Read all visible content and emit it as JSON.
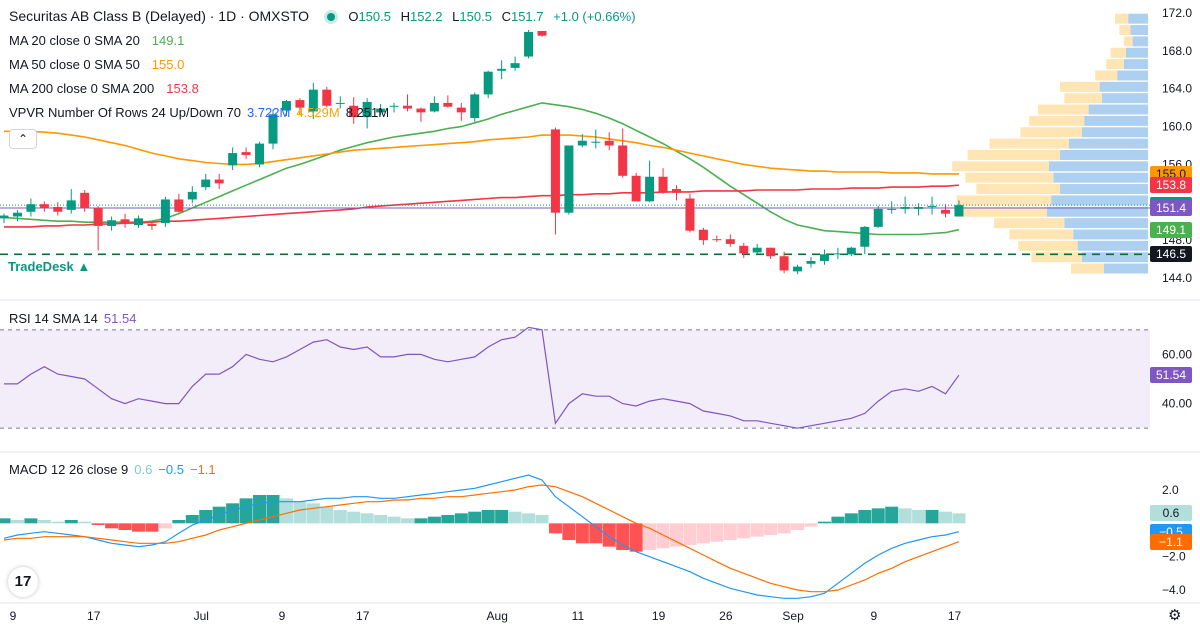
{
  "header": {
    "symbol_title": "Securitas AB Class B (Delayed) · 1D · OMXSTO",
    "ohlc": [
      {
        "key": "O",
        "value": "150.5"
      },
      {
        "key": "H",
        "value": "152.2"
      },
      {
        "key": "L",
        "value": "150.5"
      },
      {
        "key": "C",
        "value": "151.7"
      }
    ],
    "change": "+1.0 (+0.66%)"
  },
  "indicators": {
    "ma20": {
      "label": "MA 20 close 0 SMA 20",
      "value": "149.1",
      "color": "#4caf50"
    },
    "ma50": {
      "label": "MA 50 close 0 SMA 50",
      "value": "155.0",
      "color": "#ff9800"
    },
    "ma200": {
      "label": "MA 200 close 0 SMA 200",
      "value": "153.8",
      "color": "#f23645"
    },
    "vpvr": {
      "label": "VPVR Number Of Rows 24 Up/Down 70",
      "up": "3.722M",
      "down": "4.529M",
      "total": "8.251M"
    },
    "rsi": {
      "label": "RSI 14 SMA 14",
      "value": "51.54",
      "color": "#7e57c2"
    },
    "macd": {
      "label": "MACD 12 26 close 9",
      "hist": "0.6",
      "macd": "−0.5",
      "signal": "−1.1"
    }
  },
  "branding": {
    "tradedesk": "TradeDesk ▲",
    "logo": "17",
    "gear_icon": "gear-icon",
    "collapse_icon": "chevron-up-icon"
  },
  "price_badges": [
    {
      "text": "155.0",
      "bg": "#ff9800",
      "fg": "#131722",
      "price": 155.0
    },
    {
      "text": "153.8",
      "bg": "#f23645",
      "fg": "#ffffff",
      "price": 153.8
    },
    {
      "text": "151.7",
      "bg": "#089981",
      "fg": "#ffffff",
      "price": 151.7
    },
    {
      "text": "151.4",
      "bg": "#7e57c2",
      "fg": "#ffffff",
      "price": 151.4
    },
    {
      "text": "149.1",
      "bg": "#4caf50",
      "fg": "#ffffff",
      "price": 149.1
    },
    {
      "text": "146.5",
      "bg": "#131722",
      "fg": "#ffffff",
      "price": 146.5
    }
  ],
  "rsi_badge": {
    "text": "51.54",
    "bg": "#7e57c2",
    "fg": "#ffffff",
    "value": 51.54
  },
  "macd_badges": [
    {
      "text": "0.6",
      "bg": "#b2dfdb",
      "fg": "#131722",
      "value": 0.6
    },
    {
      "text": "−0.5",
      "bg": "#2196f3",
      "fg": "#ffffff",
      "value": -0.5
    },
    {
      "text": "−1.1",
      "bg": "#ff6d00",
      "fg": "#ffffff",
      "value": -1.1
    }
  ],
  "chart_data": {
    "type": "candlestick",
    "title": "Securitas AB Class B (Delayed) · 1D · OMXSTO",
    "price_axis": {
      "ticks": [
        144.0,
        148.0,
        152.0,
        156.0,
        160.0,
        164.0,
        168.0,
        172.0
      ],
      "labels": [
        "144.0",
        "148.0",
        "152.0",
        "156.0",
        "160.0",
        "164.0",
        "168.0",
        "172.0"
      ],
      "range": [
        143.2,
        172.6
      ]
    },
    "x_axis_labels": [
      {
        "label": "9",
        "index": 0
      },
      {
        "label": "17",
        "index": 6
      },
      {
        "label": "Jul",
        "index": 14
      },
      {
        "label": "9",
        "index": 20
      },
      {
        "label": "17",
        "index": 26
      },
      {
        "label": "Aug",
        "index": 36
      },
      {
        "label": "11",
        "index": 42
      },
      {
        "label": "19",
        "index": 48
      },
      {
        "label": "26",
        "index": 53
      },
      {
        "label": "Sep",
        "index": 58
      },
      {
        "label": "9",
        "index": 64
      },
      {
        "label": "17",
        "index": 70
      }
    ],
    "candles": [
      [
        150.3,
        150.8,
        149.8,
        150.6
      ],
      [
        150.5,
        151.2,
        150.0,
        150.9
      ],
      [
        151.0,
        152.4,
        150.5,
        151.8
      ],
      [
        151.8,
        152.1,
        151.0,
        151.4
      ],
      [
        151.5,
        152.0,
        150.6,
        151.0
      ],
      [
        151.2,
        153.4,
        150.8,
        152.2
      ],
      [
        153.0,
        153.3,
        151.0,
        151.4
      ],
      [
        151.4,
        151.6,
        146.9,
        149.5
      ],
      [
        149.5,
        150.5,
        149.0,
        150.1
      ],
      [
        150.2,
        150.8,
        149.3,
        149.7
      ],
      [
        149.6,
        150.6,
        149.3,
        150.3
      ],
      [
        149.7,
        150.0,
        149.1,
        149.5
      ],
      [
        149.8,
        152.6,
        149.4,
        152.3
      ],
      [
        152.3,
        152.9,
        150.9,
        151.0
      ],
      [
        152.3,
        153.7,
        151.9,
        153.1
      ],
      [
        153.6,
        155.0,
        153.3,
        154.4
      ],
      [
        154.4,
        155.0,
        153.4,
        154.0
      ],
      [
        155.9,
        157.8,
        155.4,
        157.2
      ],
      [
        157.3,
        157.8,
        156.6,
        157.0
      ],
      [
        156.0,
        158.4,
        155.7,
        158.2
      ],
      [
        158.2,
        161.8,
        157.6,
        161.3
      ],
      [
        161.7,
        162.8,
        161.1,
        162.7
      ],
      [
        162.8,
        163.0,
        161.2,
        162.0
      ],
      [
        161.6,
        164.6,
        160.8,
        163.9
      ],
      [
        163.9,
        164.2,
        162.0,
        162.2
      ],
      [
        162.4,
        163.2,
        161.9,
        162.5
      ],
      [
        162.2,
        163.1,
        160.3,
        161.0
      ],
      [
        161.0,
        163.0,
        159.8,
        162.6
      ],
      [
        161.5,
        162.4,
        161.2,
        161.9
      ],
      [
        162.1,
        162.5,
        161.5,
        162.2
      ],
      [
        162.2,
        163.4,
        161.6,
        161.9
      ],
      [
        161.9,
        162.0,
        160.5,
        161.5
      ],
      [
        161.6,
        163.2,
        161.5,
        162.5
      ],
      [
        162.5,
        163.3,
        162.0,
        162.1
      ],
      [
        162.0,
        162.5,
        160.6,
        161.5
      ],
      [
        160.9,
        163.6,
        160.5,
        163.4
      ],
      [
        163.4,
        165.9,
        163.0,
        165.8
      ],
      [
        165.9,
        167.0,
        165.0,
        166.1
      ],
      [
        166.2,
        167.4,
        165.9,
        166.7
      ],
      [
        167.4,
        170.2,
        167.2,
        170.0
      ],
      [
        170.1,
        170.0,
        169.5,
        169.6
      ],
      [
        159.7,
        159.9,
        148.6,
        150.9
      ],
      [
        150.9,
        158.0,
        150.7,
        158.0
      ],
      [
        158.0,
        159.2,
        157.8,
        158.5
      ],
      [
        158.4,
        159.7,
        157.7,
        158.4
      ],
      [
        158.5,
        159.4,
        157.5,
        158.0
      ],
      [
        158.0,
        159.8,
        154.6,
        154.8
      ],
      [
        154.8,
        155.1,
        152.2,
        152.1
      ],
      [
        152.1,
        156.4,
        152.0,
        154.7
      ],
      [
        154.7,
        155.6,
        152.9,
        153.0
      ],
      [
        153.4,
        153.8,
        152.2,
        153.0
      ],
      [
        152.4,
        152.9,
        148.8,
        149.0
      ],
      [
        149.1,
        149.3,
        147.5,
        148.0
      ],
      [
        148.1,
        148.5,
        147.8,
        148.0
      ],
      [
        148.1,
        148.6,
        147.3,
        147.6
      ],
      [
        147.4,
        147.7,
        146.1,
        146.6
      ],
      [
        146.7,
        147.6,
        146.6,
        147.2
      ],
      [
        147.2,
        147.2,
        146.0,
        146.3
      ],
      [
        146.3,
        146.8,
        144.5,
        144.8
      ],
      [
        144.7,
        145.4,
        144.4,
        145.2
      ],
      [
        145.5,
        146.2,
        145.1,
        145.8
      ],
      [
        145.8,
        147.0,
        145.4,
        146.5
      ],
      [
        146.5,
        147.2,
        146.0,
        146.6
      ],
      [
        146.5,
        147.3,
        146.3,
        147.2
      ],
      [
        147.3,
        149.5,
        146.5,
        149.4
      ],
      [
        149.4,
        151.6,
        149.3,
        151.3
      ],
      [
        151.2,
        152.1,
        150.8,
        151.3
      ],
      [
        151.3,
        152.6,
        150.8,
        151.5
      ],
      [
        151.3,
        151.9,
        150.6,
        151.5
      ],
      [
        151.5,
        152.6,
        150.7,
        151.6
      ],
      [
        151.2,
        151.8,
        150.4,
        150.8
      ],
      [
        150.5,
        152.2,
        150.5,
        151.7
      ]
    ],
    "moving_averages": [
      {
        "name": "MA 20",
        "color": "#4caf50",
        "values": [
          150.4,
          150.3,
          150.2,
          150.1,
          150.0,
          150.0,
          149.9,
          149.9,
          149.9,
          149.9,
          149.9,
          150.0,
          150.3,
          150.8,
          151.4,
          152.0,
          152.6,
          153.2,
          153.8,
          154.4,
          155.0,
          155.6,
          156.0,
          156.5,
          157.0,
          157.5,
          157.9,
          158.3,
          158.6,
          158.9,
          159.1,
          159.3,
          159.5,
          159.8,
          160.0,
          160.4,
          160.8,
          161.3,
          161.7,
          162.1,
          162.5,
          162.3,
          162.1,
          161.8,
          161.4,
          160.9,
          160.3,
          159.6,
          158.9,
          158.2,
          157.4,
          156.6,
          155.7,
          154.7,
          153.7,
          152.8,
          151.9,
          151.0,
          150.2,
          149.6,
          149.3,
          149.0,
          148.9,
          148.8,
          148.7,
          148.6,
          148.6,
          148.6,
          148.6,
          148.7,
          148.8,
          149.1
        ]
      },
      {
        "name": "MA 50",
        "color": "#ff9800",
        "values": [
          159.5,
          159.5,
          159.5,
          159.4,
          159.3,
          159.1,
          158.9,
          158.6,
          158.3,
          158.0,
          157.6,
          157.2,
          156.9,
          156.6,
          156.4,
          156.2,
          156.1,
          156.0,
          156.0,
          156.1,
          156.3,
          156.5,
          156.7,
          156.9,
          157.1,
          157.3,
          157.5,
          157.6,
          157.7,
          157.8,
          157.9,
          158.0,
          158.1,
          158.2,
          158.3,
          158.4,
          158.6,
          158.7,
          158.8,
          158.9,
          159.1,
          159.1,
          159.1,
          159.0,
          158.9,
          158.7,
          158.5,
          158.3,
          158.0,
          157.8,
          157.5,
          157.2,
          156.9,
          156.6,
          156.3,
          156.0,
          155.8,
          155.6,
          155.5,
          155.4,
          155.3,
          155.3,
          155.2,
          155.2,
          155.2,
          155.2,
          155.1,
          155.1,
          155.1,
          155.0,
          155.0,
          155.0
        ]
      },
      {
        "name": "MA 200",
        "color": "#f23645",
        "values": [
          149.4,
          149.4,
          149.4,
          149.5,
          149.5,
          149.6,
          149.6,
          149.7,
          149.7,
          149.8,
          149.8,
          149.9,
          150.0,
          150.0,
          150.1,
          150.2,
          150.3,
          150.4,
          150.5,
          150.6,
          150.7,
          150.8,
          150.9,
          151.0,
          151.1,
          151.2,
          151.3,
          151.5,
          151.6,
          151.7,
          151.8,
          151.9,
          152.0,
          152.1,
          152.2,
          152.3,
          152.4,
          152.5,
          152.5,
          152.6,
          152.7,
          152.7,
          152.8,
          152.8,
          152.9,
          152.9,
          153.0,
          153.0,
          153.0,
          153.1,
          153.1,
          153.1,
          153.2,
          153.2,
          153.2,
          153.2,
          153.3,
          153.3,
          153.3,
          153.3,
          153.4,
          153.4,
          153.4,
          153.5,
          153.5,
          153.5,
          153.6,
          153.6,
          153.6,
          153.7,
          153.7,
          153.8
        ]
      }
    ],
    "reference_lines": [
      {
        "price": 151.7,
        "style": "dotted",
        "color": "#089981"
      },
      {
        "price": 151.4,
        "style": "solid",
        "color": "#7e57c2"
      },
      {
        "price": 146.5,
        "style": "dashed",
        "color": "#0b6b3a"
      }
    ],
    "vpvr": {
      "rows": [
        {
          "price": 171.4,
          "up": 0.6,
          "down": 0.9
        },
        {
          "price": 170.2,
          "up": 0.5,
          "down": 0.8
        },
        {
          "price": 169.0,
          "up": 0.4,
          "down": 0.7
        },
        {
          "price": 167.8,
          "up": 0.7,
          "down": 1.0
        },
        {
          "price": 166.6,
          "up": 0.8,
          "down": 1.1
        },
        {
          "price": 165.4,
          "up": 1.0,
          "down": 1.4
        },
        {
          "price": 164.2,
          "up": 1.8,
          "down": 2.2
        },
        {
          "price": 163.0,
          "up": 1.7,
          "down": 2.1
        },
        {
          "price": 161.8,
          "up": 2.3,
          "down": 2.7
        },
        {
          "price": 160.6,
          "up": 2.5,
          "down": 2.9
        },
        {
          "price": 159.4,
          "up": 2.8,
          "down": 3.0
        },
        {
          "price": 158.2,
          "up": 3.6,
          "down": 3.6
        },
        {
          "price": 157.0,
          "up": 4.2,
          "down": 4.0
        },
        {
          "price": 155.8,
          "up": 4.4,
          "down": 4.5
        },
        {
          "price": 154.6,
          "up": 4.0,
          "down": 4.3
        },
        {
          "price": 153.4,
          "up": 3.8,
          "down": 4.0
        },
        {
          "price": 152.2,
          "up": 4.3,
          "down": 4.4
        },
        {
          "price": 151.0,
          "up": 4.1,
          "down": 4.6
        },
        {
          "price": 149.8,
          "up": 3.2,
          "down": 3.8
        },
        {
          "price": 148.6,
          "up": 2.9,
          "down": 3.4
        },
        {
          "price": 147.4,
          "up": 2.7,
          "down": 3.2
        },
        {
          "price": 146.2,
          "up": 2.3,
          "down": 3.0
        },
        {
          "price": 145.0,
          "up": 1.5,
          "down": 2.0
        }
      ],
      "up_color": "#ffe0a6",
      "down_color": "#9fc8ef"
    },
    "rsi": {
      "axis_labels": [
        "60.00",
        "40.00"
      ],
      "axis_values": [
        60,
        40
      ],
      "bands": [
        70,
        30
      ],
      "range": [
        26,
        74
      ],
      "values": [
        48,
        48,
        52,
        55,
        52,
        51,
        50,
        46,
        42,
        40,
        42,
        41,
        40,
        40,
        47,
        52,
        52,
        55,
        60,
        58,
        57,
        59,
        62,
        65,
        66,
        63,
        62,
        63,
        59,
        59,
        60,
        60,
        58,
        57,
        58,
        59,
        63,
        66,
        67,
        71,
        70,
        32,
        40,
        44,
        43,
        43,
        40,
        39,
        41,
        42,
        41,
        40,
        37,
        36,
        35,
        33,
        33,
        32,
        31,
        30,
        31,
        32,
        33,
        34,
        36,
        41,
        45,
        46,
        45,
        47,
        44,
        51.54
      ]
    },
    "macd": {
      "axis_labels": [
        "2.0",
        "−2.0",
        "−4.0"
      ],
      "axis_values": [
        2.0,
        -2.0,
        -4.0
      ],
      "range": [
        -4.6,
        3.2
      ],
      "histogram": [
        0.3,
        0.2,
        0.3,
        0.2,
        0.1,
        0.2,
        0.1,
        -0.1,
        -0.3,
        -0.4,
        -0.5,
        -0.5,
        -0.3,
        0.2,
        0.5,
        0.8,
        1.0,
        1.2,
        1.5,
        1.7,
        1.7,
        1.5,
        1.3,
        1.2,
        1.0,
        0.8,
        0.7,
        0.6,
        0.5,
        0.4,
        0.3,
        0.3,
        0.4,
        0.5,
        0.6,
        0.7,
        0.8,
        0.8,
        0.7,
        0.6,
        0.5,
        -0.6,
        -1.0,
        -1.2,
        -1.2,
        -1.4,
        -1.6,
        -1.7,
        -1.6,
        -1.5,
        -1.4,
        -1.3,
        -1.2,
        -1.1,
        -1.0,
        -0.9,
        -0.8,
        -0.7,
        -0.6,
        -0.4,
        -0.2,
        0.1,
        0.4,
        0.6,
        0.8,
        0.9,
        1.0,
        0.9,
        0.8,
        0.8,
        0.7,
        0.6
      ],
      "macd_line": [
        -0.9,
        -0.7,
        -0.6,
        -0.5,
        -0.6,
        -0.7,
        -0.8,
        -1.0,
        -1.2,
        -1.3,
        -1.4,
        -1.3,
        -1.1,
        -0.6,
        -0.1,
        0.2,
        0.5,
        0.8,
        1.0,
        1.2,
        1.3,
        1.3,
        1.3,
        1.4,
        1.5,
        1.5,
        1.6,
        1.6,
        1.5,
        1.5,
        1.6,
        1.7,
        1.8,
        1.9,
        2.0,
        2.1,
        2.3,
        2.5,
        2.7,
        2.9,
        2.6,
        1.6,
        1.0,
        0.4,
        -0.2,
        -0.8,
        -1.3,
        -1.7,
        -2.0,
        -2.3,
        -2.6,
        -2.9,
        -3.3,
        -3.6,
        -3.9,
        -4.1,
        -4.3,
        -4.4,
        -4.5,
        -4.5,
        -4.4,
        -4.2,
        -3.6,
        -3.0,
        -2.4,
        -1.9,
        -1.5,
        -1.2,
        -1.0,
        -0.8,
        -0.7,
        -0.5
      ],
      "signal_line": [
        -1.0,
        -0.9,
        -0.9,
        -0.8,
        -0.8,
        -0.8,
        -0.8,
        -0.9,
        -1.0,
        -1.1,
        -1.2,
        -1.2,
        -1.2,
        -1.1,
        -0.9,
        -0.7,
        -0.4,
        -0.2,
        0.0,
        0.2,
        0.4,
        0.6,
        0.8,
        0.9,
        1.0,
        1.1,
        1.2,
        1.3,
        1.3,
        1.4,
        1.4,
        1.5,
        1.5,
        1.6,
        1.6,
        1.7,
        1.8,
        1.9,
        2.0,
        2.2,
        2.3,
        2.2,
        1.9,
        1.6,
        1.2,
        0.8,
        0.4,
        0.0,
        -0.3,
        -0.7,
        -1.1,
        -1.5,
        -1.9,
        -2.3,
        -2.7,
        -3.0,
        -3.3,
        -3.6,
        -3.8,
        -4.0,
        -4.1,
        -4.1,
        -4.0,
        -3.7,
        -3.4,
        -3.0,
        -2.7,
        -2.3,
        -2.0,
        -1.7,
        -1.4,
        -1.1
      ]
    }
  }
}
